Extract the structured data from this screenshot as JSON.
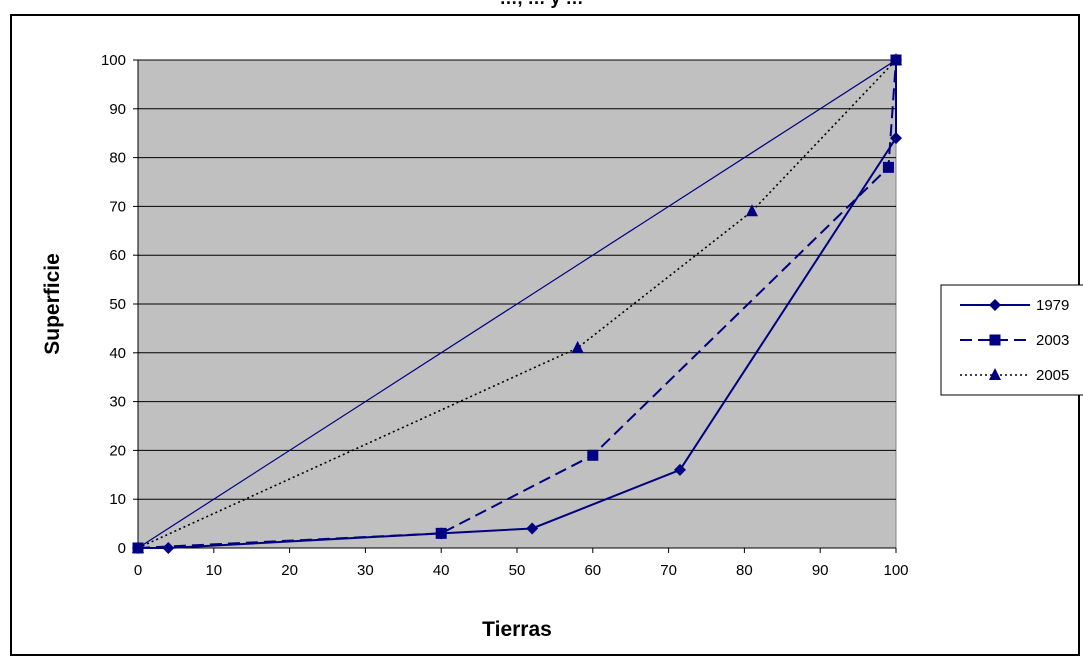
{
  "chart_data": {
    "type": "line",
    "title": "…, … y …",
    "xlabel": "Tierras",
    "ylabel": "Superficie",
    "xlim": [
      0,
      100
    ],
    "ylim": [
      0,
      100
    ],
    "x_ticks": [
      0,
      10,
      20,
      30,
      40,
      50,
      60,
      70,
      80,
      90,
      100
    ],
    "y_ticks": [
      0,
      10,
      20,
      30,
      40,
      50,
      60,
      70,
      80,
      90,
      100
    ],
    "grid": "horizontal",
    "plot_background": "#c0c0c0",
    "series_color": "#000080",
    "legend_position": "right",
    "equality_line": {
      "x": [
        0,
        100
      ],
      "y": [
        0,
        100
      ]
    },
    "series": [
      {
        "name": "1979",
        "marker": "diamond",
        "line": "solid",
        "x": [
          0,
          4,
          40,
          52,
          71.5,
          100,
          100
        ],
        "y": [
          0,
          0,
          3,
          4,
          16,
          84,
          100
        ]
      },
      {
        "name": "2003",
        "marker": "square",
        "line": "dashed",
        "x": [
          0,
          40,
          60,
          99,
          100
        ],
        "y": [
          0,
          3,
          19,
          78,
          100
        ]
      },
      {
        "name": "2005",
        "marker": "triangle",
        "line": "dotted",
        "x": [
          0,
          58,
          81,
          100
        ],
        "y": [
          0,
          41,
          69,
          100
        ]
      }
    ]
  }
}
